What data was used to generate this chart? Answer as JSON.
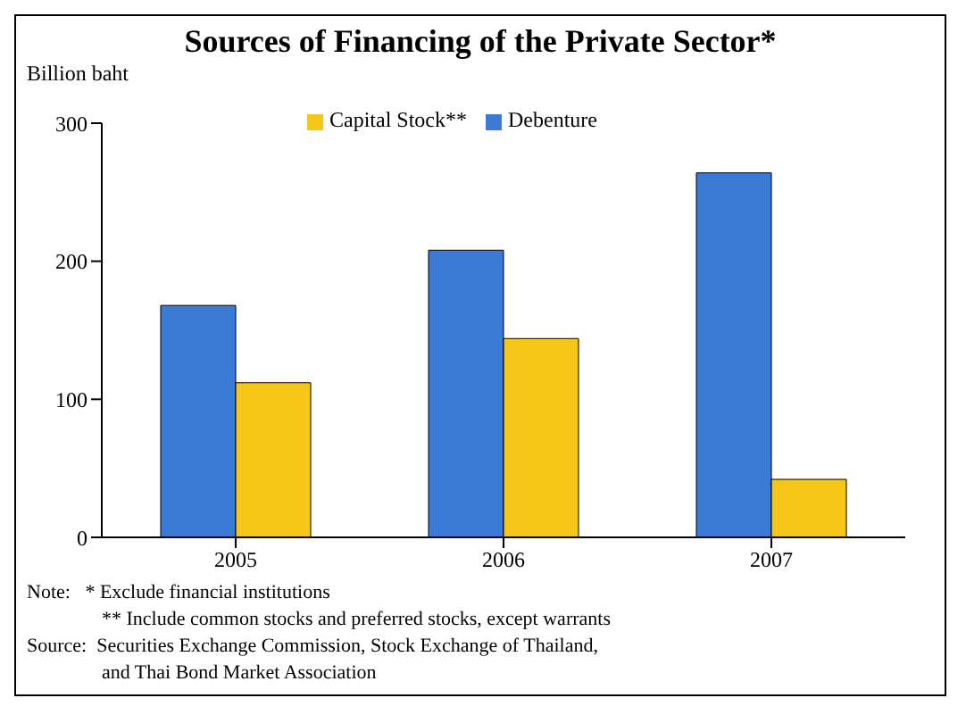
{
  "chart_data": {
    "type": "bar",
    "title": "Sources of Financing of the Private Sector*",
    "ylabel": "Billion baht",
    "categories": [
      "2005",
      "2006",
      "2007"
    ],
    "series": [
      {
        "name": "Debenture",
        "color": "#3a7bd5",
        "values": [
          168,
          208,
          264
        ]
      },
      {
        "name": "Capital Stock**",
        "color": "#f5c518",
        "values": [
          112,
          144,
          42
        ]
      }
    ],
    "ylim": [
      0,
      300
    ],
    "yticks": [
      0,
      100,
      200,
      300
    ],
    "grid": false,
    "legend": "top",
    "annotations": [
      "Note:   * Exclude financial institutions",
      "** Include common stocks and preferred stocks, except warrants",
      "Source:  Securities Exchange Commission, Stock Exchange of Thailand,",
      "and Thai Bond Market Association"
    ]
  }
}
